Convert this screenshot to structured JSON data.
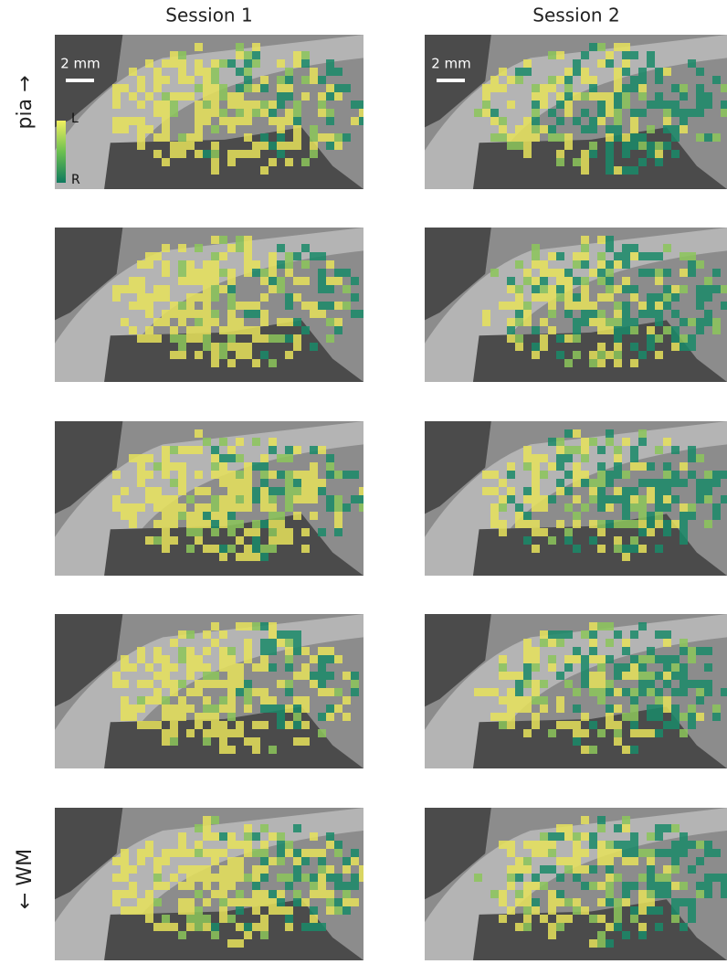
{
  "header": {
    "columns": [
      "Session 1",
      "Session 2"
    ]
  },
  "row_labels": {
    "top": "pia →",
    "bottom": "← WM"
  },
  "scale_bar": {
    "label": "2 mm"
  },
  "colorbar": {
    "top_label": "L",
    "bottom_label": "R"
  }
}
